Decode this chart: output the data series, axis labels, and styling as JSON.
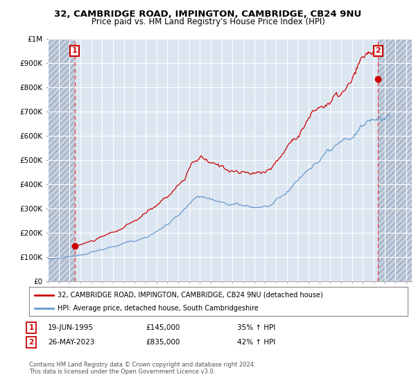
{
  "title_line1": "32, CAMBRIDGE ROAD, IMPINGTON, CAMBRIDGE, CB24 9NU",
  "title_line2": "Price paid vs. HM Land Registry's House Price Index (HPI)",
  "legend_line1": "32, CAMBRIDGE ROAD, IMPINGTON, CAMBRIDGE, CB24 9NU (detached house)",
  "legend_line2": "HPI: Average price, detached house, South Cambridgeshire",
  "footnote": "Contains HM Land Registry data © Crown copyright and database right 2024.\nThis data is licensed under the Open Government Licence v3.0.",
  "transaction1_date": "19-JUN-1995",
  "transaction1_price": "£145,000",
  "transaction1_hpi": "35% ↑ HPI",
  "transaction2_date": "26-MAY-2023",
  "transaction2_price": "£835,000",
  "transaction2_hpi": "42% ↑ HPI",
  "ylim": [
    0,
    1000000
  ],
  "background_color": "#ffffff",
  "plot_bg_color": "#dce6f1",
  "grid_color": "#ffffff",
  "red_color": "#cc0000",
  "blue_color": "#6699cc",
  "dashed_line_color": "#ee4444",
  "transaction1_x": 1995.47,
  "transaction2_x": 2023.4,
  "transaction1_y": 145000,
  "transaction2_y": 835000,
  "xmin": 1993.0,
  "xmax": 2026.5,
  "hatch_left_end": 1995.47,
  "hatch_right_start": 2023.4
}
